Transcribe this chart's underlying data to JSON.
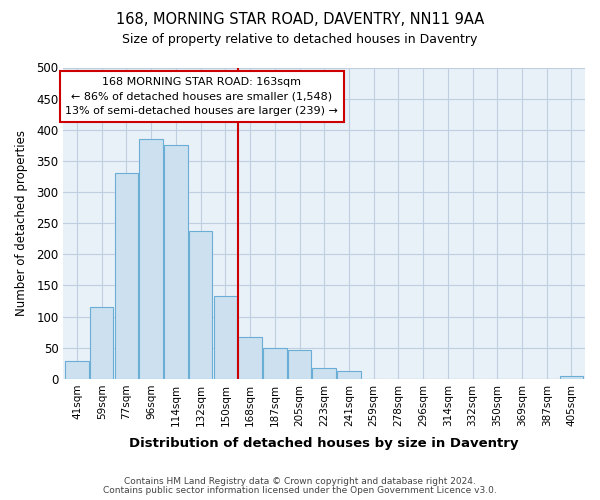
{
  "title1": "168, MORNING STAR ROAD, DAVENTRY, NN11 9AA",
  "title2": "Size of property relative to detached houses in Daventry",
  "xlabel": "Distribution of detached houses by size in Daventry",
  "ylabel": "Number of detached properties",
  "categories": [
    "41sqm",
    "59sqm",
    "77sqm",
    "96sqm",
    "114sqm",
    "132sqm",
    "150sqm",
    "168sqm",
    "187sqm",
    "205sqm",
    "223sqm",
    "241sqm",
    "259sqm",
    "278sqm",
    "296sqm",
    "314sqm",
    "332sqm",
    "350sqm",
    "369sqm",
    "387sqm",
    "405sqm"
  ],
  "values": [
    28,
    116,
    330,
    385,
    375,
    237,
    133,
    68,
    50,
    46,
    18,
    13,
    0,
    0,
    0,
    0,
    0,
    0,
    0,
    0,
    5
  ],
  "highlight_index": 7,
  "bar_fill_color": "#cce0f0",
  "bar_edge_color": "#6aaed6",
  "vline_color": "#cc0000",
  "annotation_text": "168 MORNING STAR ROAD: 163sqm\n← 86% of detached houses are smaller (1,548)\n13% of semi-detached houses are larger (239) →",
  "annotation_box_color": "#ffffff",
  "annotation_box_edge": "#cc0000",
  "ylim": [
    0,
    500
  ],
  "yticks": [
    0,
    50,
    100,
    150,
    200,
    250,
    300,
    350,
    400,
    450,
    500
  ],
  "footer1": "Contains HM Land Registry data © Crown copyright and database right 2024.",
  "footer2": "Contains public sector information licensed under the Open Government Licence v3.0.",
  "bg_color": "#ffffff",
  "plot_bg_color": "#e8f0f8",
  "grid_color": "#c0cfe0"
}
